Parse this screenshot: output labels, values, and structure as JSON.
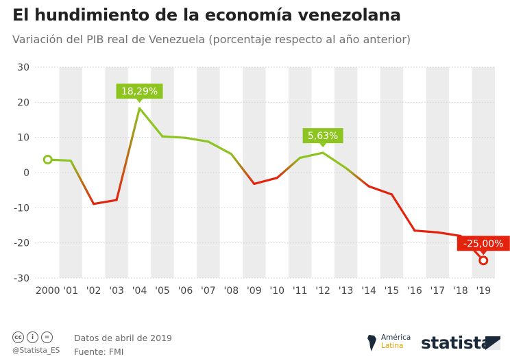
{
  "title": "El hundimiento de la economía venezolana",
  "subtitle": "Variación del PIB real de Venezuela (porcentaje respecto al año anterior)",
  "footer": {
    "date": "Datos de abril de 2019",
    "source": "Fuente: FMI",
    "handle": "@Statista_ES",
    "cc_icons": [
      "cc-icon",
      "by-icon",
      "nd-icon"
    ],
    "partner_line1": "América",
    "partner_line2": "Latina",
    "brand": "statista"
  },
  "colors": {
    "positive": "#8dc41f",
    "negative": "#e3230e",
    "band": "#ececec",
    "grid": "#d0d0d0"
  },
  "chart_data": {
    "type": "line",
    "categories": [
      "2000",
      "'01",
      "'02",
      "'03",
      "'04",
      "'05",
      "'06",
      "'07",
      "'08",
      "'09",
      "'10",
      "'11",
      "'12",
      "'13",
      "'14",
      "'15",
      "'16",
      "'17",
      "'18",
      "'19"
    ],
    "series": [
      {
        "name": "Variación del PIB real (%)",
        "values": [
          3.7,
          3.4,
          -8.9,
          -7.8,
          18.29,
          10.3,
          9.9,
          8.8,
          5.3,
          -3.2,
          -1.5,
          4.2,
          5.63,
          1.3,
          -3.9,
          -6.2,
          -16.5,
          -17.0,
          -18.0,
          -25.0
        ]
      }
    ],
    "ylim": [
      -30,
      30
    ],
    "yticks": [
      30,
      20,
      10,
      0,
      -10,
      -20,
      -30
    ],
    "annotations": [
      {
        "index": 4,
        "label": "18,29%",
        "color": "#8dc41f"
      },
      {
        "index": 12,
        "label": "5,63%",
        "color": "#8dc41f"
      },
      {
        "index": 19,
        "label": "-25,00%",
        "color": "#e3230e"
      }
    ],
    "start_marker_index": 0,
    "end_marker_index": 19
  }
}
